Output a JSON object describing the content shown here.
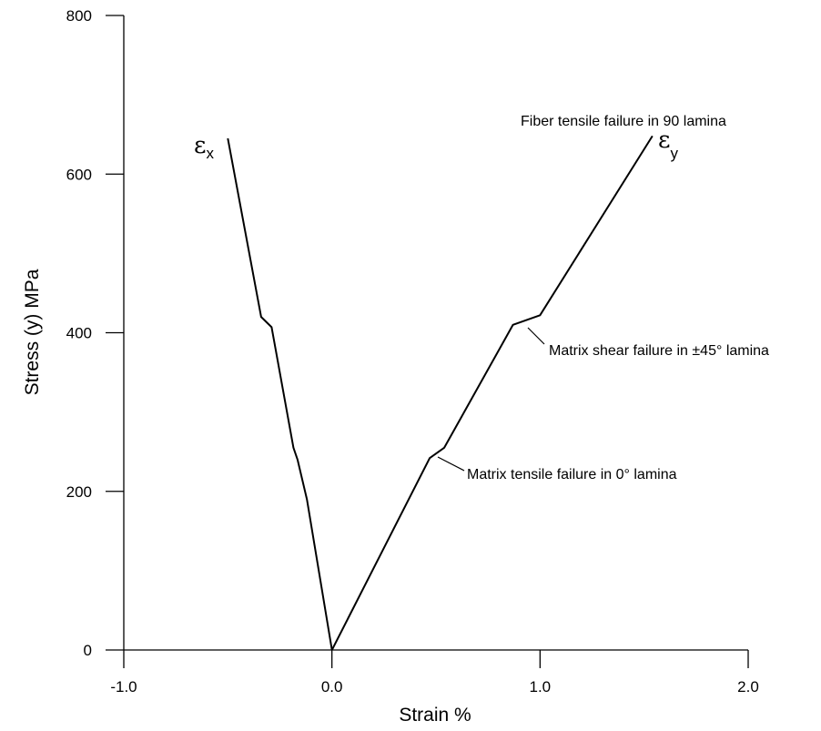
{
  "chart_data": {
    "type": "line",
    "title": "",
    "xlabel": "Strain %",
    "ylabel": "Stress (y) MPa",
    "xlim": [
      -1.0,
      2.0
    ],
    "ylim": [
      0,
      800
    ],
    "x_ticks": [
      {
        "value": -1.0,
        "label": "-1.0"
      },
      {
        "value": 0.0,
        "label": "0.0"
      },
      {
        "value": 1.0,
        "label": "1.0"
      },
      {
        "value": 2.0,
        "label": "2.0"
      }
    ],
    "y_ticks": [
      {
        "value": 0,
        "label": "0"
      },
      {
        "value": 200,
        "label": "200"
      },
      {
        "value": 400,
        "label": "400"
      },
      {
        "value": 600,
        "label": "600"
      },
      {
        "value": 800,
        "label": "800"
      }
    ],
    "grid": false,
    "series": [
      {
        "name": "εx",
        "symbol": "ε",
        "subscript": "x",
        "x": [
          0.0,
          -0.12,
          -0.165,
          -0.185,
          -0.29,
          -0.34,
          -0.5
        ],
        "y": [
          0,
          190,
          240,
          255,
          407,
          420,
          645
        ]
      },
      {
        "name": "εy",
        "symbol": "ε",
        "subscript": "y",
        "x": [
          0.0,
          0.47,
          0.54,
          0.87,
          1.0,
          1.54
        ],
        "y": [
          0,
          242,
          255,
          410,
          422,
          648
        ]
      }
    ],
    "annotations": [
      {
        "text": "Fiber tensile failure in 90  lamina",
        "x": 1.54,
        "y": 648
      },
      {
        "text": "Matrix shear failure in ±45° lamina",
        "x": 0.95,
        "y": 417
      },
      {
        "text": "Matrix tensile failure in 0° lamina",
        "x": 0.505,
        "y": 248
      }
    ]
  }
}
